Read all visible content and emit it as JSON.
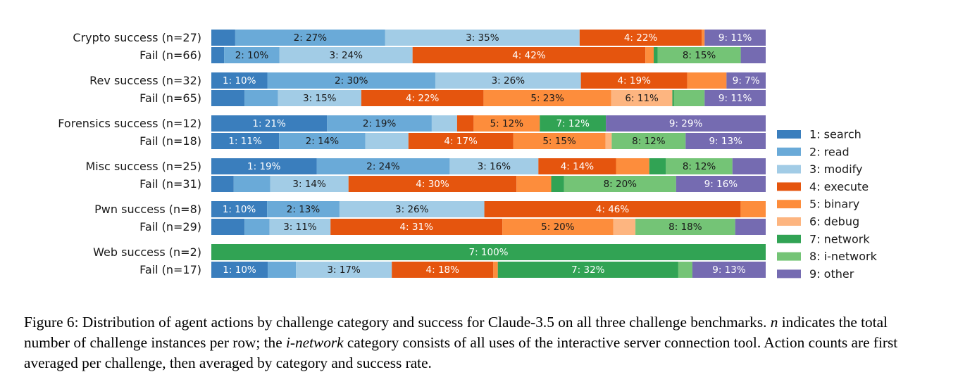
{
  "chart_data": {
    "type": "bar",
    "orientation": "horizontal",
    "stacked": true,
    "normalized": true,
    "legend_position": "right",
    "categories": [
      "Crypto success (n=27)",
      "Fail (n=66)",
      "Rev success (n=32)",
      "Fail (n=65)",
      "Forensics success (n=12)",
      "Fail (n=18)",
      "Misc success (n=25)",
      "Fail (n=31)",
      "Pwn success (n=8)",
      "Fail (n=29)",
      "Web success (n=2)",
      "Fail (n=17)"
    ],
    "series": [
      {
        "name": "1: search",
        "short": "1",
        "color": "#3a7ebd",
        "values": [
          4.3,
          2.3,
          10,
          6,
          21,
          11,
          19,
          4,
          10,
          6,
          0,
          10
        ]
      },
      {
        "name": "2: read",
        "short": "2",
        "color": "#6aaad8",
        "values": [
          27,
          10,
          30,
          6,
          19,
          14,
          24,
          6.5,
          13,
          4.5,
          0,
          5
        ]
      },
      {
        "name": "3: modify",
        "short": "3",
        "color": "#a2cce6",
        "values": [
          35,
          24,
          26,
          15,
          4.6,
          7,
          16,
          14,
          26,
          11,
          0,
          17
        ]
      },
      {
        "name": "4: execute",
        "short": "4",
        "color": "#e5550e",
        "values": [
          22,
          42,
          19,
          22,
          3,
          17,
          14,
          30,
          46,
          31,
          0,
          18
        ]
      },
      {
        "name": "5: binary",
        "short": "5",
        "color": "#fd8d3c",
        "values": [
          0.5,
          1.5,
          7,
          23,
          12,
          15,
          6,
          6.2,
          4.5,
          20,
          0,
          0.8
        ]
      },
      {
        "name": "6: debug",
        "short": "6",
        "color": "#fdb580",
        "values": [
          0,
          0,
          0,
          11,
          0,
          1,
          0,
          0,
          0,
          4,
          0,
          0
        ]
      },
      {
        "name": "7: network",
        "short": "7",
        "color": "#31a354",
        "values": [
          0,
          0.7,
          0,
          0.3,
          12,
          0,
          3,
          2.3,
          0,
          0,
          100,
          32
        ]
      },
      {
        "name": "8: i-network",
        "short": "8",
        "color": "#74c476",
        "values": [
          0,
          15,
          0,
          5.5,
          0,
          12,
          12,
          20,
          0,
          18,
          0,
          2.5
        ]
      },
      {
        "name": "9: other",
        "short": "9",
        "color": "#756bb1",
        "values": [
          11,
          4.5,
          7,
          11,
          29,
          13,
          6,
          16,
          0,
          5.5,
          0,
          13
        ]
      }
    ],
    "data_labels": [
      [
        "",
        "2: 27%",
        "3: 35%",
        "4: 22%",
        "",
        "",
        "",
        "",
        "9: 11%"
      ],
      [
        "",
        "2: 10%",
        "3: 24%",
        "4: 42%",
        "",
        "",
        "",
        "8: 15%",
        ""
      ],
      [
        "1: 10%",
        "2: 30%",
        "3: 26%",
        "4: 19%",
        "",
        "",
        "",
        "",
        "9: 7%"
      ],
      [
        "",
        "",
        "3: 15%",
        "4: 22%",
        "5: 23%",
        "6: 11%",
        "",
        "",
        "9: 11%"
      ],
      [
        "1: 21%",
        "2: 19%",
        "",
        "",
        "5: 12%",
        "",
        "7: 12%",
        "",
        "9: 29%"
      ],
      [
        "1: 11%",
        "2: 14%",
        "",
        "4: 17%",
        "5: 15%",
        "",
        "",
        "8: 12%",
        "9: 13%"
      ],
      [
        "1: 19%",
        "2: 24%",
        "3: 16%",
        "4: 14%",
        "",
        "",
        "",
        "8: 12%",
        ""
      ],
      [
        "",
        "",
        "3: 14%",
        "4: 30%",
        "",
        "",
        "",
        "8: 20%",
        "9: 16%"
      ],
      [
        "1: 10%",
        "2: 13%",
        "3: 26%",
        "4: 46%",
        "",
        "",
        "",
        "",
        ""
      ],
      [
        "",
        "",
        "3: 11%",
        "4: 31%",
        "5: 20%",
        "",
        "",
        "8: 18%",
        ""
      ],
      [
        "",
        "",
        "",
        "",
        "",
        "",
        "7: 100%",
        "",
        ""
      ],
      [
        "1: 10%",
        "",
        "3: 17%",
        "4: 18%",
        "",
        "",
        "7: 32%",
        "",
        "9: 13%"
      ]
    ],
    "xlim": [
      0,
      100
    ],
    "grid": false
  },
  "caption": {
    "part1": "Figure 6: Distribution of agent actions by challenge category and success for Claude-3.5 on all three challenge benchmarks. ",
    "n_symbol": "n",
    "part2": " indicates the total number of challenge instances per row; the ",
    "i_network": "i-network",
    "part3": " category consists of all uses of the interactive server connection tool. Action counts are first averaged per challenge, then averaged by category and success rate."
  }
}
